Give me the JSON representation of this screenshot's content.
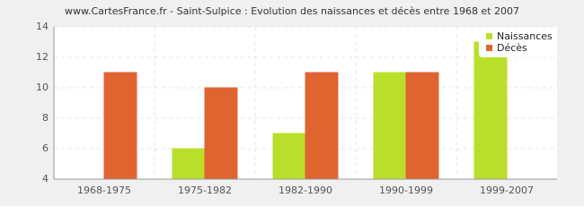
{
  "chart_data": {
    "type": "bar",
    "title": "www.CartesFrance.fr - Saint-Sulpice : Evolution des naissances et décès entre 1968 et 2007",
    "categories": [
      "1968-1975",
      "1975-1982",
      "1982-1990",
      "1990-1999",
      "1999-2007"
    ],
    "series": [
      {
        "name": "Naissances",
        "color": "#badf2b",
        "values": [
          4,
          6,
          7,
          11,
          13
        ]
      },
      {
        "name": "Décès",
        "color": "#e06430",
        "values": [
          11,
          10,
          11,
          11,
          4
        ]
      }
    ],
    "ylim": [
      4,
      14
    ],
    "yticks": [
      4,
      6,
      8,
      10,
      12,
      14
    ],
    "grid": true,
    "legend": "top-right"
  }
}
